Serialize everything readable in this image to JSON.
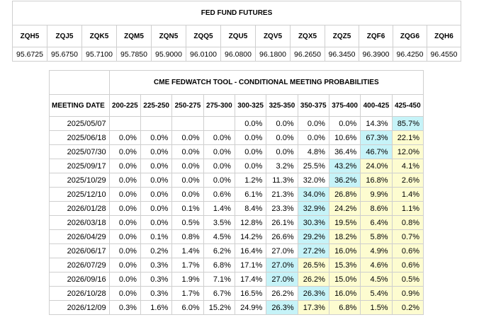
{
  "futures": {
    "title": "FED FUND FUTURES",
    "contracts": [
      "ZQH5",
      "ZQJ5",
      "ZQK5",
      "ZQM5",
      "ZQN5",
      "ZQQ5",
      "ZQU5",
      "ZQV5",
      "ZQX5",
      "ZQZ5",
      "ZQF6",
      "ZQG6",
      "ZQH6"
    ],
    "prices": [
      "95.6725",
      "95.6750",
      "95.7100",
      "95.7850",
      "95.9000",
      "96.0100",
      "96.0800",
      "96.1800",
      "96.2650",
      "96.3450",
      "96.3900",
      "96.4250",
      "96.4550"
    ]
  },
  "fedwatch": {
    "title": "CME FEDWATCH TOOL - CONDITIONAL MEETING PROBABILITIES",
    "date_header": "MEETING DATE",
    "ranges": [
      "200-225",
      "225-250",
      "250-275",
      "275-300",
      "300-325",
      "325-350",
      "350-375",
      "375-400",
      "400-425",
      "425-450"
    ],
    "colors": {
      "highest": "#c6f3f8",
      "above_current": "#fdfcd0",
      "default": "#ffffff"
    },
    "rows": [
      {
        "date": "2025/05/07",
        "values": [
          "",
          "",
          "",
          "",
          "0.0%",
          "0.0%",
          "0.0%",
          "0.0%",
          "14.3%",
          "85.7%"
        ]
      },
      {
        "date": "2025/06/18",
        "values": [
          "0.0%",
          "0.0%",
          "0.0%",
          "0.0%",
          "0.0%",
          "0.0%",
          "0.0%",
          "10.6%",
          "67.3%",
          "22.1%"
        ]
      },
      {
        "date": "2025/07/30",
        "values": [
          "0.0%",
          "0.0%",
          "0.0%",
          "0.0%",
          "0.0%",
          "0.0%",
          "4.8%",
          "36.4%",
          "46.7%",
          "12.0%"
        ]
      },
      {
        "date": "2025/09/17",
        "values": [
          "0.0%",
          "0.0%",
          "0.0%",
          "0.0%",
          "0.0%",
          "3.2%",
          "25.5%",
          "43.2%",
          "24.0%",
          "4.1%"
        ]
      },
      {
        "date": "2025/10/29",
        "values": [
          "0.0%",
          "0.0%",
          "0.0%",
          "0.0%",
          "1.2%",
          "11.3%",
          "32.0%",
          "36.2%",
          "16.8%",
          "2.6%"
        ]
      },
      {
        "date": "2025/12/10",
        "values": [
          "0.0%",
          "0.0%",
          "0.0%",
          "0.6%",
          "6.1%",
          "21.3%",
          "34.0%",
          "26.8%",
          "9.9%",
          "1.4%"
        ]
      },
      {
        "date": "2026/01/28",
        "values": [
          "0.0%",
          "0.0%",
          "0.1%",
          "1.4%",
          "8.4%",
          "23.3%",
          "32.9%",
          "24.2%",
          "8.6%",
          "1.1%"
        ]
      },
      {
        "date": "2026/03/18",
        "values": [
          "0.0%",
          "0.0%",
          "0.5%",
          "3.5%",
          "12.8%",
          "26.1%",
          "30.3%",
          "19.5%",
          "6.4%",
          "0.8%"
        ]
      },
      {
        "date": "2026/04/29",
        "values": [
          "0.0%",
          "0.1%",
          "0.8%",
          "4.5%",
          "14.2%",
          "26.6%",
          "29.2%",
          "18.2%",
          "5.8%",
          "0.7%"
        ]
      },
      {
        "date": "2026/06/17",
        "values": [
          "0.0%",
          "0.2%",
          "1.4%",
          "6.2%",
          "16.4%",
          "27.0%",
          "27.2%",
          "16.0%",
          "4.9%",
          "0.6%"
        ]
      },
      {
        "date": "2026/07/29",
        "values": [
          "0.0%",
          "0.3%",
          "1.7%",
          "6.8%",
          "17.1%",
          "27.0%",
          "26.5%",
          "15.3%",
          "4.6%",
          "0.6%"
        ]
      },
      {
        "date": "2026/09/16",
        "values": [
          "0.0%",
          "0.3%",
          "1.9%",
          "7.1%",
          "17.4%",
          "27.0%",
          "26.2%",
          "15.0%",
          "4.5%",
          "0.5%"
        ]
      },
      {
        "date": "2026/10/28",
        "values": [
          "0.0%",
          "0.3%",
          "1.7%",
          "6.7%",
          "16.5%",
          "26.2%",
          "26.3%",
          "16.0%",
          "5.4%",
          "0.9%"
        ]
      },
      {
        "date": "2026/12/09",
        "values": [
          "0.3%",
          "1.6%",
          "6.0%",
          "15.2%",
          "24.9%",
          "26.3%",
          "17.3%",
          "6.8%",
          "1.5%",
          "0.2%"
        ]
      }
    ]
  }
}
